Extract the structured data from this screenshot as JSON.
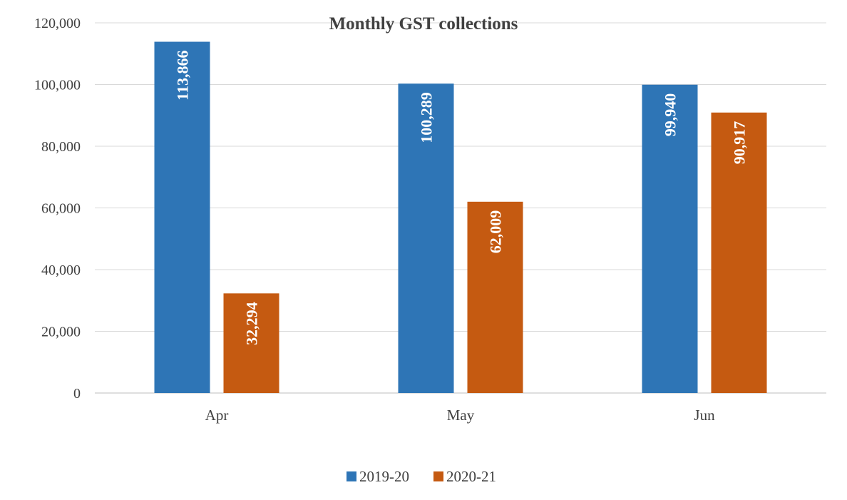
{
  "chart_data": {
    "type": "bar",
    "title": "Monthly GST collections",
    "categories": [
      "Apr",
      "May",
      "Jun"
    ],
    "series": [
      {
        "name": "2019-20",
        "color": "#2e75b6",
        "values": [
          113866,
          100289,
          99940
        ],
        "labels": [
          "113,866",
          "100,289",
          "99,940"
        ]
      },
      {
        "name": "2020-21",
        "color": "#c55a11",
        "values": [
          32294,
          62009,
          90917
        ],
        "labels": [
          "32,294",
          "62,009",
          "90,917"
        ]
      }
    ],
    "ylim": [
      0,
      120000
    ],
    "yticks": [
      0,
      20000,
      40000,
      60000,
      80000,
      100000,
      120000
    ],
    "ytick_labels": [
      "0",
      "20,000",
      "40,000",
      "60,000",
      "80,000",
      "100,000",
      "120,000"
    ],
    "grid": true,
    "legend_position": "bottom"
  }
}
